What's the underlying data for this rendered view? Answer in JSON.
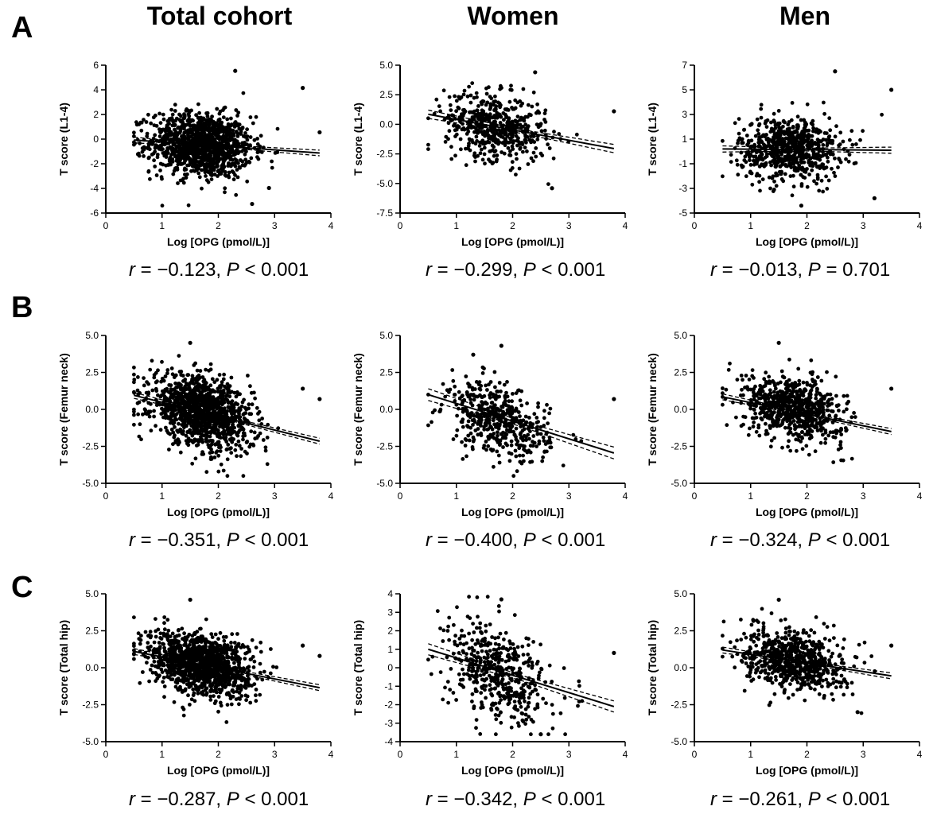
{
  "column_titles": [
    "Total cohort",
    "Women",
    "Men"
  ],
  "row_labels": [
    "A",
    "B",
    "C"
  ],
  "chart_data": [
    {
      "type": "scatter",
      "row": "A",
      "column": "Total cohort",
      "xlabel": "Log [OPG (pmol/L)]",
      "ylabel": "T score (L1-4)",
      "xlim": [
        0,
        4
      ],
      "ylim": [
        -6,
        7
      ],
      "xticks": [
        "0",
        "1",
        "2",
        "3",
        "4"
      ],
      "yticks": [
        "-6",
        "-4",
        "-2",
        "0",
        "2",
        "4",
        "6"
      ],
      "regression": {
        "x": [
          0.5,
          3.8
        ],
        "y": [
          0.42,
          -0.72
        ],
        "ci_halfwidth": 0.25
      },
      "cloud": {
        "n": 1200,
        "x_mean": 1.7,
        "x_sd": 0.45,
        "y_center": 0.0,
        "y_sd": 1.4
      },
      "outliers": [
        [
          3.5,
          5.0
        ],
        [
          3.8,
          1.1
        ],
        [
          2.3,
          6.5
        ],
        [
          2.9,
          -3.8
        ],
        [
          2.6,
          -5.2
        ]
      ],
      "stats": {
        "r_label": "r",
        "r_value": " = −0.123, ",
        "p_label": "P",
        "p_value": " < 0.001"
      }
    },
    {
      "type": "scatter",
      "row": "A",
      "column": "Women",
      "xlabel": "Log [OPG (pmol/L)]",
      "ylabel": "T score (L1-4)",
      "xlim": [
        0,
        4
      ],
      "ylim": [
        -7.5,
        5.0
      ],
      "xticks": [
        "0",
        "1",
        "2",
        "3",
        "4"
      ],
      "yticks": [
        "-7.5",
        "-5.0",
        "-2.5",
        "0.0",
        "2.5",
        "5.0"
      ],
      "regression": {
        "x": [
          0.5,
          3.8
        ],
        "y": [
          0.85,
          -2.05
        ],
        "ci_halfwidth": 0.35
      },
      "cloud": {
        "n": 520,
        "x_mean": 1.7,
        "x_sd": 0.45,
        "y_center": -0.2,
        "y_sd": 1.4
      },
      "outliers": [
        [
          3.8,
          1.1
        ],
        [
          2.4,
          4.4
        ],
        [
          2.7,
          -5.4
        ]
      ],
      "stats": {
        "r_label": "r",
        "r_value": " = −0.299, ",
        "p_label": "P",
        "p_value": " < 0.001"
      }
    },
    {
      "type": "scatter",
      "row": "A",
      "column": "Men",
      "xlabel": "Log [OPG (pmol/L)]",
      "ylabel": "T score (L1-4)",
      "xlim": [
        0,
        4
      ],
      "ylim": [
        -5,
        7
      ],
      "xticks": [
        "0",
        "1",
        "2",
        "3",
        "4"
      ],
      "yticks": [
        "-5",
        "-3",
        "-1",
        "1",
        "3",
        "5",
        "7"
      ],
      "regression": {
        "x": [
          0.5,
          3.5
        ],
        "y": [
          0.2,
          0.1
        ],
        "ci_halfwidth": 0.25
      },
      "cloud": {
        "n": 700,
        "x_mean": 1.7,
        "x_sd": 0.45,
        "y_center": 0.2,
        "y_sd": 1.3
      },
      "outliers": [
        [
          3.5,
          5.0
        ],
        [
          2.5,
          6.5
        ],
        [
          3.2,
          -3.8
        ],
        [
          1.9,
          -4.4
        ]
      ],
      "stats": {
        "r_label": "r",
        "r_value": " = −0.013, ",
        "p_label": "P",
        "p_value": " = 0.701"
      }
    },
    {
      "type": "scatter",
      "row": "B",
      "column": "Total cohort",
      "xlabel": "Log [OPG (pmol/L)]",
      "ylabel": "T score (Femur neck)",
      "xlim": [
        0,
        4
      ],
      "ylim": [
        -5.0,
        5.0
      ],
      "xticks": [
        "0",
        "1",
        "2",
        "3",
        "4"
      ],
      "yticks": [
        "-5.0",
        "-2.5",
        "0.0",
        "2.5",
        "5.0"
      ],
      "regression": {
        "x": [
          0.5,
          3.8
        ],
        "y": [
          0.95,
          -2.15
        ],
        "ci_halfwidth": 0.2
      },
      "cloud": {
        "n": 1200,
        "x_mean": 1.7,
        "x_sd": 0.45,
        "y_center": -0.2,
        "y_sd": 1.15
      },
      "outliers": [
        [
          3.8,
          0.7
        ],
        [
          3.5,
          1.4
        ],
        [
          1.5,
          4.5
        ]
      ],
      "stats": {
        "r_label": "r",
        "r_value": " = −0.351, ",
        "p_label": "P",
        "p_value": " < 0.001"
      }
    },
    {
      "type": "scatter",
      "row": "B",
      "column": "Women",
      "xlabel": "Log [OPG (pmol/L)]",
      "ylabel": "T score (Femur neck)",
      "xlim": [
        0,
        4
      ],
      "ylim": [
        -5.0,
        5.0
      ],
      "xticks": [
        "0",
        "1",
        "2",
        "3",
        "4"
      ],
      "yticks": [
        "-5.0",
        "-2.5",
        "0.0",
        "2.5",
        "5.0"
      ],
      "regression": {
        "x": [
          0.5,
          3.8
        ],
        "y": [
          1.0,
          -2.95
        ],
        "ci_halfwidth": 0.4
      },
      "cloud": {
        "n": 480,
        "x_mean": 1.75,
        "x_sd": 0.45,
        "y_center": -0.8,
        "y_sd": 1.2
      },
      "outliers": [
        [
          3.8,
          0.7
        ],
        [
          1.8,
          4.3
        ],
        [
          1.3,
          3.7
        ]
      ],
      "stats": {
        "r_label": "r",
        "r_value": " = −0.400, ",
        "p_label": "P",
        "p_value": " < 0.001"
      }
    },
    {
      "type": "scatter",
      "row": "B",
      "column": "Men",
      "xlabel": "Log [OPG (pmol/L)]",
      "ylabel": "T score (Femur neck)",
      "xlim": [
        0,
        4
      ],
      "ylim": [
        -5.0,
        5.0
      ],
      "xticks": [
        "0",
        "1",
        "2",
        "3",
        "4"
      ],
      "yticks": [
        "-5.0",
        "-2.5",
        "0.0",
        "2.5",
        "5.0"
      ],
      "regression": {
        "x": [
          0.5,
          3.5
        ],
        "y": [
          0.85,
          -1.5
        ],
        "ci_halfwidth": 0.2
      },
      "cloud": {
        "n": 700,
        "x_mean": 1.75,
        "x_sd": 0.45,
        "y_center": 0.1,
        "y_sd": 1.05
      },
      "outliers": [
        [
          3.5,
          1.4
        ],
        [
          1.5,
          4.5
        ]
      ],
      "stats": {
        "r_label": "r",
        "r_value": " = −0.324, ",
        "p_label": "P",
        "p_value": " < 0.001"
      }
    },
    {
      "type": "scatter",
      "row": "C",
      "column": "Total cohort",
      "xlabel": "Log [OPG (pmol/L)]",
      "ylabel": "T score (Total hip)",
      "xlim": [
        0,
        4
      ],
      "ylim": [
        -5.0,
        5.0
      ],
      "xticks": [
        "0",
        "1",
        "2",
        "3",
        "4"
      ],
      "yticks": [
        "-5.0",
        "-2.5",
        "0.0",
        "2.5",
        "5.0"
      ],
      "regression": {
        "x": [
          0.5,
          3.8
        ],
        "y": [
          1.1,
          -1.35
        ],
        "ci_halfwidth": 0.2
      },
      "cloud": {
        "n": 1200,
        "x_mean": 1.7,
        "x_sd": 0.45,
        "y_center": 0.25,
        "y_sd": 1.05
      },
      "outliers": [
        [
          3.8,
          0.8
        ],
        [
          3.5,
          1.5
        ],
        [
          1.5,
          4.6
        ]
      ],
      "stats": {
        "r_label": "r",
        "r_value": " = −0.287, ",
        "p_label": "P",
        "p_value": " < 0.001"
      }
    },
    {
      "type": "scatter",
      "row": "C",
      "column": "Women",
      "xlabel": "Log [OPG (pmol/L)]",
      "ylabel": "T score (Total hip)",
      "xlim": [
        0,
        4
      ],
      "ylim": [
        -4,
        4
      ],
      "xticks": [
        "0",
        "1",
        "2",
        "3",
        "4"
      ],
      "yticks": [
        "-4",
        "-3",
        "-2",
        "-1",
        "0",
        "1",
        "2",
        "3",
        "4"
      ],
      "regression": {
        "x": [
          0.5,
          3.8
        ],
        "y": [
          1.0,
          -2.1
        ],
        "ci_halfwidth": 0.3
      },
      "cloud": {
        "n": 480,
        "x_mean": 1.75,
        "x_sd": 0.45,
        "y_center": -0.3,
        "y_sd": 1.3
      },
      "outliers": [
        [
          3.8,
          0.8
        ],
        [
          1.8,
          3.7
        ],
        [
          2.5,
          -3.8
        ]
      ],
      "stats": {
        "r_label": "r",
        "r_value": " = −0.342, ",
        "p_label": "P",
        "p_value": " < 0.001"
      }
    },
    {
      "type": "scatter",
      "row": "C",
      "column": "Men",
      "xlabel": "Log [OPG (pmol/L)]",
      "ylabel": "T score (Total hip)",
      "xlim": [
        0,
        4
      ],
      "ylim": [
        -5.0,
        5.0
      ],
      "xticks": [
        "0",
        "1",
        "2",
        "3",
        "4"
      ],
      "yticks": [
        "-5.0",
        "-2.5",
        "0.0",
        "2.5",
        "5.0"
      ],
      "regression": {
        "x": [
          0.5,
          3.5
        ],
        "y": [
          1.2,
          -0.55
        ],
        "ci_halfwidth": 0.2
      },
      "cloud": {
        "n": 700,
        "x_mean": 1.75,
        "x_sd": 0.45,
        "y_center": 0.5,
        "y_sd": 1.0
      },
      "outliers": [
        [
          3.5,
          1.5
        ],
        [
          1.5,
          4.6
        ],
        [
          2.9,
          -3.0
        ]
      ],
      "stats": {
        "r_label": "r",
        "r_value": " = −0.261, ",
        "p_label": "P",
        "p_value": " < 0.001"
      }
    }
  ]
}
